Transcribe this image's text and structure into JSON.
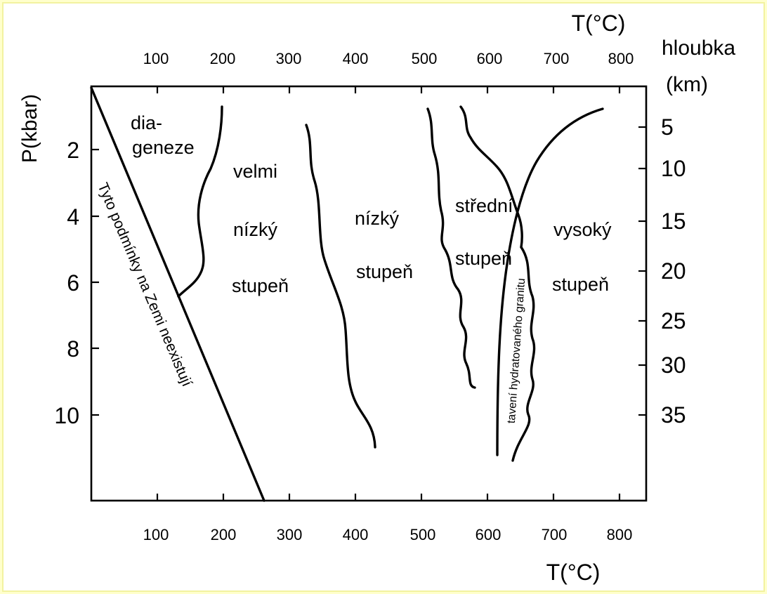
{
  "chart_data": {
    "type": "diagram",
    "top_axis": {
      "label": "T(°C)",
      "ticks": [
        "100",
        "200",
        "300",
        "400",
        "500",
        "600",
        "700",
        "800"
      ]
    },
    "bottom_axis": {
      "label": "T(°C)",
      "ticks": [
        "100",
        "200",
        "300",
        "400",
        "500",
        "600",
        "700",
        "800"
      ]
    },
    "left_axis": {
      "label": "P(kbar)",
      "ticks": [
        "2",
        "4",
        "6",
        "8",
        "10"
      ]
    },
    "right_axis": {
      "label_line1": "hloubka",
      "label_line2": "(km)",
      "ticks": [
        "5",
        "10",
        "15",
        "20",
        "25",
        "30",
        "35"
      ]
    },
    "zones": {
      "diageneze_1": "dia-",
      "diageneze_2": "geneze",
      "velmi": "velmi",
      "velmi_nizky": "nízký",
      "velmi_stupen": "stupeň",
      "nizky": "nízký",
      "nizky_stupen": "stupeň",
      "stredni": "střední",
      "stredni_stupen": "stupeň",
      "vysoky": "vysoký",
      "vysoky_stupen": "stupeň"
    },
    "annotations": {
      "forbidden": "Tyto podmínky na Zemi neexistují",
      "melting": "tavení hydratovaného granitu"
    }
  }
}
